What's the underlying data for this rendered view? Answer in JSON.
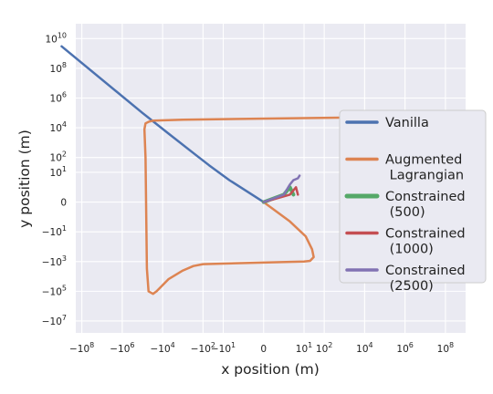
{
  "chart_data": {
    "type": "line",
    "xlabel": "x position (m)",
    "ylabel": "y position (m)",
    "x_scale": "symlog",
    "y_scale": "symlog",
    "grid": true,
    "legend_placement": "center-right",
    "x_ticks": [
      {
        "value": -100000000,
        "label": "−10",
        "exp": "8"
      },
      {
        "value": -1000000,
        "label": "−10",
        "exp": "6"
      },
      {
        "value": -10000,
        "label": "−10",
        "exp": "4"
      },
      {
        "value": -100,
        "label": "−10",
        "exp": "2"
      },
      {
        "value": -10,
        "label": "−10",
        "exp": "1"
      },
      {
        "value": 0,
        "label": "0",
        "exp": ""
      },
      {
        "value": 10,
        "label": "10",
        "exp": "1"
      },
      {
        "value": 100,
        "label": "10",
        "exp": "2"
      },
      {
        "value": 10000,
        "label": "10",
        "exp": "4"
      },
      {
        "value": 1000000,
        "label": "10",
        "exp": "6"
      },
      {
        "value": 100000000,
        "label": "10",
        "exp": "8"
      }
    ],
    "y_ticks": [
      {
        "value": 10000000000,
        "label": "10",
        "exp": "10"
      },
      {
        "value": 100000000,
        "label": "10",
        "exp": "8"
      },
      {
        "value": 1000000,
        "label": "10",
        "exp": "6"
      },
      {
        "value": 10000,
        "label": "10",
        "exp": "4"
      },
      {
        "value": 100,
        "label": "10",
        "exp": "2"
      },
      {
        "value": 10,
        "label": "10",
        "exp": "1"
      },
      {
        "value": 0,
        "label": "0",
        "exp": ""
      },
      {
        "value": -10,
        "label": "−10",
        "exp": "1"
      },
      {
        "value": -1000,
        "label": "−10",
        "exp": "3"
      },
      {
        "value": -100000,
        "label": "−10",
        "exp": "5"
      },
      {
        "value": -10000000,
        "label": "−10",
        "exp": "7"
      }
    ],
    "series": [
      {
        "name": "Vanilla",
        "color": "#4c72b0",
        "width": 2.5,
        "points": [
          [
            -1000000000,
            3000000000
          ],
          [
            -100000,
            100000
          ],
          [
            -5000,
            4000
          ],
          [
            -300,
            200
          ],
          [
            -50,
            30
          ],
          [
            -5,
            3
          ],
          [
            0,
            0
          ]
        ]
      },
      {
        "name": "Augmented\n Lagrangian",
        "color": "#dd8452",
        "width": 2.5,
        "points": [
          [
            0,
            0
          ],
          [
            2,
            -2
          ],
          [
            12,
            -20
          ],
          [
            25,
            -150
          ],
          [
            30,
            -500
          ],
          [
            20,
            -900
          ],
          [
            10,
            -1000
          ],
          [
            -100,
            -1500
          ],
          [
            -300,
            -2000
          ],
          [
            -1000,
            -4000
          ],
          [
            -5000,
            -15000
          ],
          [
            -20000,
            -100000
          ],
          [
            -30000,
            -150000
          ],
          [
            -50000,
            -100000
          ],
          [
            -60000,
            -3000
          ],
          [
            -70000,
            100
          ],
          [
            -80000,
            8000
          ],
          [
            -70000,
            20000
          ],
          [
            -50000,
            25000
          ],
          [
            -30000,
            30000
          ],
          [
            -1000,
            35000
          ],
          [
            10000,
            50000
          ],
          [
            50000,
            50000
          ],
          [
            150000,
            80000
          ]
        ]
      },
      {
        "name": "Constrained\n (500)",
        "color": "#55a868",
        "width": 4,
        "points": [
          [
            0,
            0
          ],
          [
            1,
            0.5
          ],
          [
            2,
            1
          ],
          [
            3,
            0.5
          ]
        ]
      },
      {
        "name": "Constrained\n (1000)",
        "color": "#c44e52",
        "width": 2.5,
        "points": [
          [
            0,
            0
          ],
          [
            2,
            0.5
          ],
          [
            4,
            1
          ],
          [
            5,
            0.5
          ]
        ]
      },
      {
        "name": "Constrained\n (2500)",
        "color": "#8172b3",
        "width": 2.5,
        "points": [
          [
            0,
            0
          ],
          [
            1,
            0.5
          ],
          [
            2,
            1.5
          ],
          [
            3,
            3
          ],
          [
            5,
            4
          ],
          [
            6,
            6
          ]
        ]
      }
    ]
  }
}
